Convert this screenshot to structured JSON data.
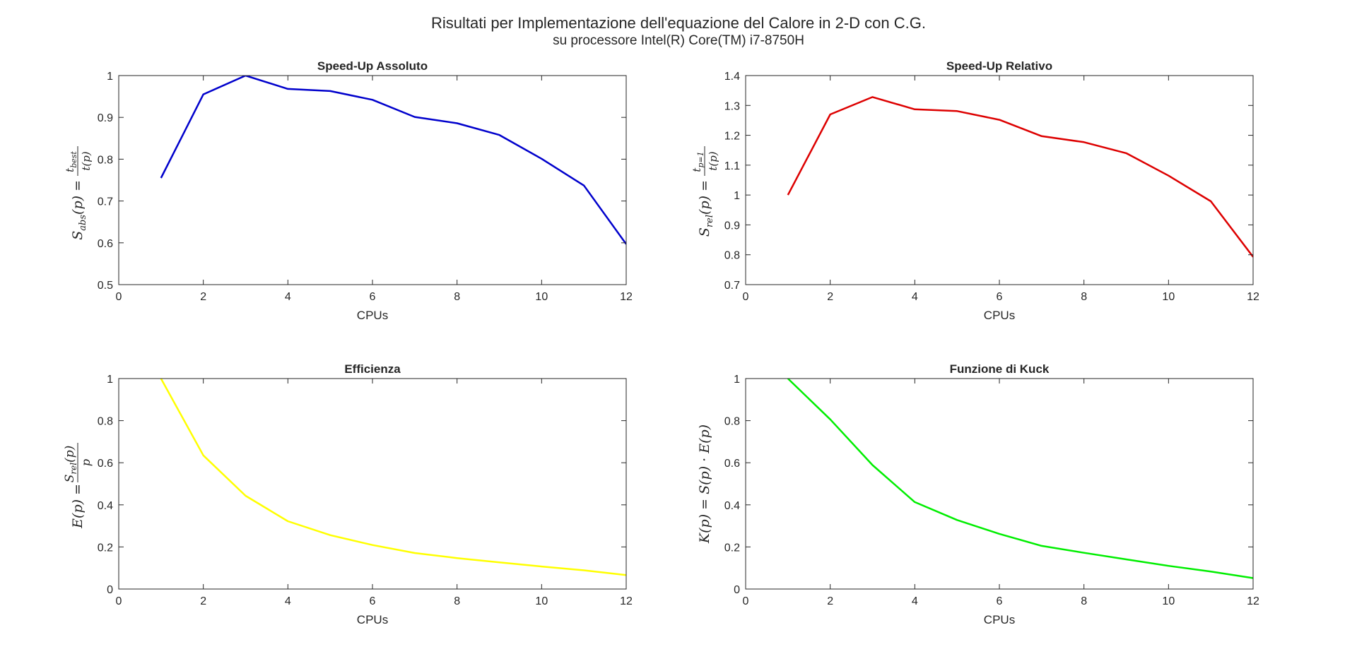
{
  "figure": {
    "title_line1": "Risultati per Implementazione dell'equazione del Calore in 2-D con C.G.",
    "title_line2": "su processore Intel(R) Core(TM) i7-8750H"
  },
  "chart_data": [
    {
      "type": "line",
      "title": "Speed-Up Assoluto",
      "xlabel": "CPUs",
      "ylabel": "S_abs(p) = t_best / t(p)",
      "xlim": [
        0,
        12
      ],
      "ylim": [
        0.5,
        1
      ],
      "xticks": [
        0,
        2,
        4,
        6,
        8,
        10,
        12
      ],
      "yticks": [
        0.5,
        0.6,
        0.7,
        0.8,
        0.9,
        1
      ],
      "grid": false,
      "series": [
        {
          "color": "#0000cc",
          "x": [
            1,
            2,
            3,
            4,
            5,
            6,
            7,
            8,
            9,
            10,
            11,
            12
          ],
          "y": [
            0.755,
            0.955,
            1.0,
            0.968,
            0.963,
            0.942,
            0.901,
            0.886,
            0.858,
            0.801,
            0.737,
            0.597
          ]
        }
      ]
    },
    {
      "type": "line",
      "title": "Speed-Up Relativo",
      "xlabel": "CPUs",
      "ylabel": "S_rel(p) = t_p=1 / t(p)",
      "xlim": [
        0,
        12
      ],
      "ylim": [
        0.7,
        1.4
      ],
      "xticks": [
        0,
        2,
        4,
        6,
        8,
        10,
        12
      ],
      "yticks": [
        0.7,
        0.8,
        0.9,
        1,
        1.1,
        1.2,
        1.3,
        1.4
      ],
      "grid": false,
      "series": [
        {
          "color": "#dd0000",
          "x": [
            1,
            2,
            3,
            4,
            5,
            6,
            7,
            8,
            9,
            10,
            11,
            12
          ],
          "y": [
            1.0,
            1.27,
            1.328,
            1.287,
            1.281,
            1.252,
            1.197,
            1.177,
            1.14,
            1.065,
            0.979,
            0.793
          ]
        }
      ]
    },
    {
      "type": "line",
      "title": "Efficienza",
      "xlabel": "CPUs",
      "ylabel": "E(p) = S_rel(p) / p",
      "xlim": [
        0,
        12
      ],
      "ylim": [
        0,
        1
      ],
      "xticks": [
        0,
        2,
        4,
        6,
        8,
        10,
        12
      ],
      "yticks": [
        0,
        0.2,
        0.4,
        0.6,
        0.8,
        1
      ],
      "grid": false,
      "series": [
        {
          "color": "#ffff00",
          "x": [
            1,
            2,
            3,
            4,
            5,
            6,
            7,
            8,
            9,
            10,
            11,
            12
          ],
          "y": [
            1.0,
            0.635,
            0.443,
            0.322,
            0.256,
            0.209,
            0.171,
            0.147,
            0.127,
            0.107,
            0.089,
            0.066
          ]
        }
      ]
    },
    {
      "type": "line",
      "title": "Funzione di Kuck",
      "xlabel": "CPUs",
      "ylabel": "K(p) = S(p) · E(p)",
      "xlim": [
        0,
        12
      ],
      "ylim": [
        0,
        1
      ],
      "xticks": [
        0,
        2,
        4,
        6,
        8,
        10,
        12
      ],
      "yticks": [
        0,
        0.2,
        0.4,
        0.6,
        0.8,
        1
      ],
      "grid": false,
      "series": [
        {
          "color": "#00ee00",
          "x": [
            1,
            2,
            3,
            4,
            5,
            6,
            7,
            8,
            9,
            10,
            11,
            12
          ],
          "y": [
            1.0,
            0.806,
            0.589,
            0.413,
            0.328,
            0.262,
            0.205,
            0.172,
            0.141,
            0.11,
            0.083,
            0.052
          ]
        }
      ]
    }
  ]
}
